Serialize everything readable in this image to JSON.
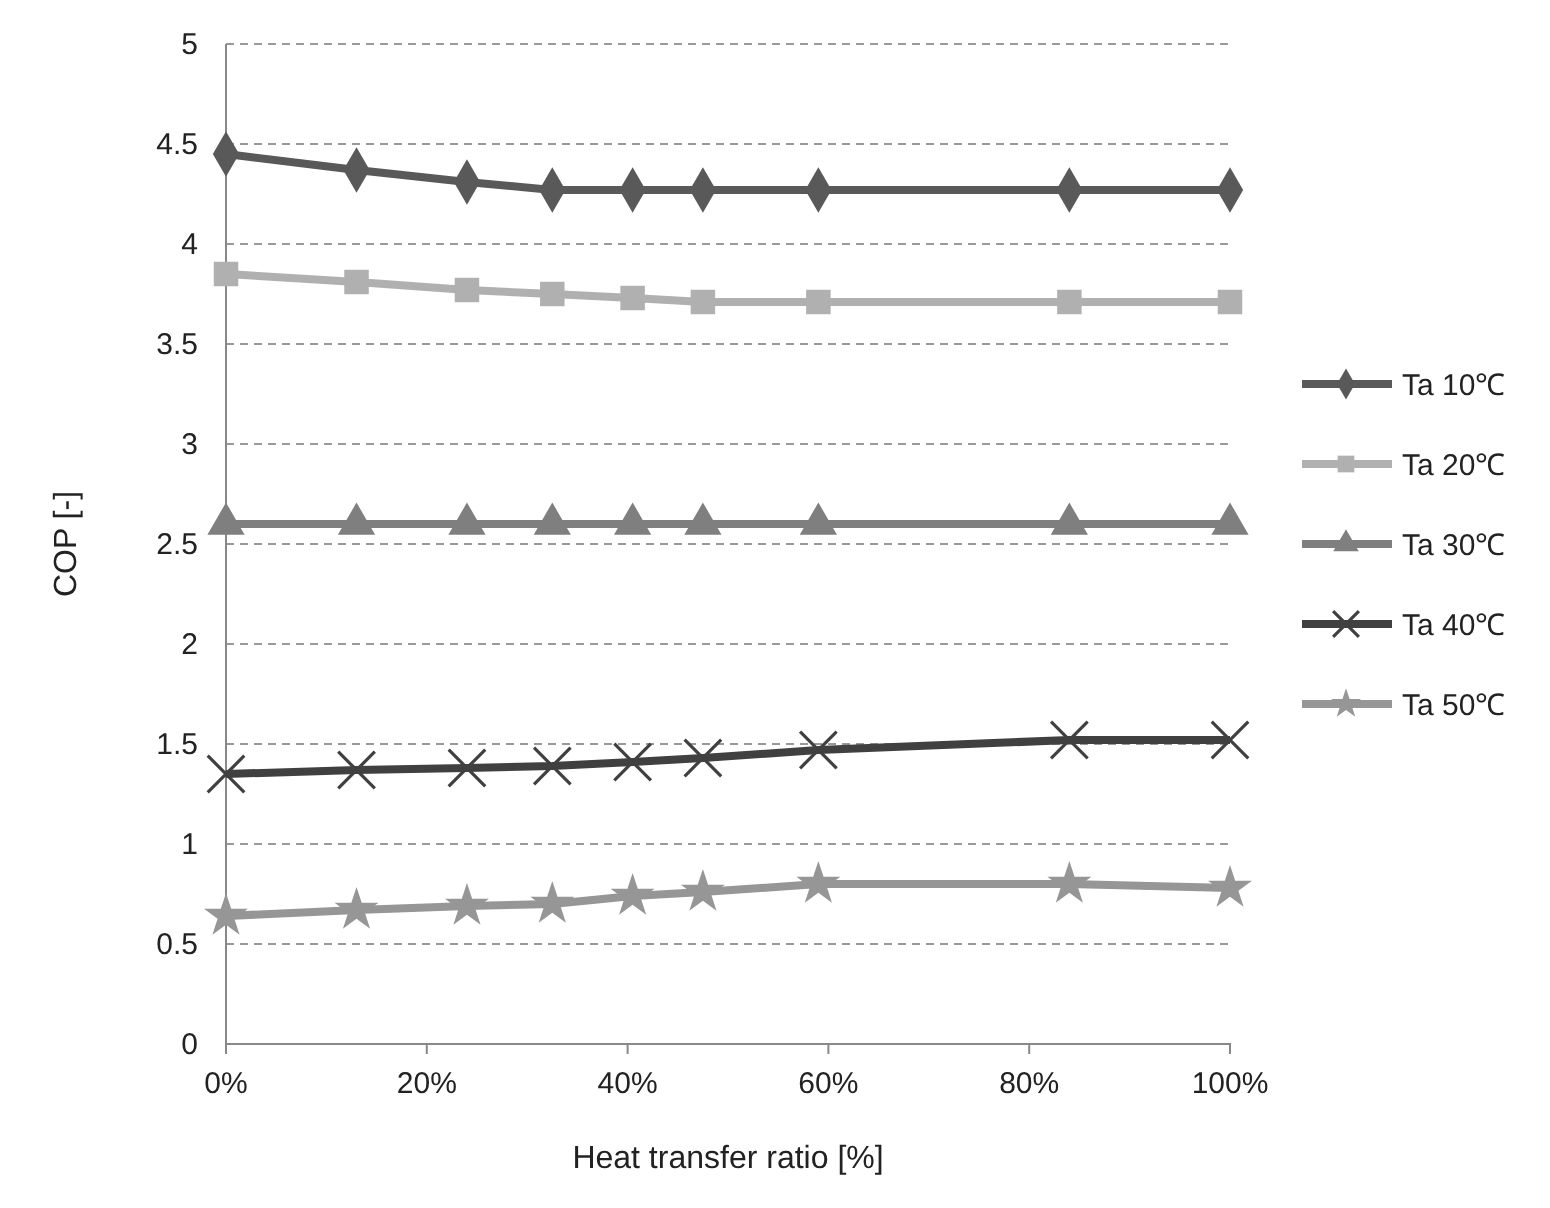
{
  "chart_data": {
    "type": "line",
    "xlabel": "Heat transfer ratio [%]",
    "ylabel": "COP [-]",
    "x": [
      0,
      13,
      24,
      32.5,
      40.5,
      47.5,
      59,
      84,
      100
    ],
    "xlim": [
      0,
      100
    ],
    "xticks": [
      {
        "value": 0,
        "label": "0%"
      },
      {
        "value": 20,
        "label": "20%"
      },
      {
        "value": 40,
        "label": "40%"
      },
      {
        "value": 60,
        "label": "60%"
      },
      {
        "value": 80,
        "label": "80%"
      },
      {
        "value": 100,
        "label": "100%"
      }
    ],
    "ylim": [
      0,
      5
    ],
    "yticks": [
      0,
      0.5,
      1,
      1.5,
      2,
      2.5,
      3,
      3.5,
      4,
      4.5,
      5
    ],
    "grid": "y",
    "legend": "right",
    "line_style": "solid",
    "series": [
      {
        "name": "Ta 10℃",
        "color": "#595959",
        "marker": "diamond",
        "values": [
          4.45,
          4.37,
          4.31,
          4.27,
          4.27,
          4.27,
          4.27,
          4.27,
          4.27
        ]
      },
      {
        "name": "Ta 20℃",
        "color": "#b0b0b0",
        "marker": "square",
        "values": [
          3.85,
          3.81,
          3.77,
          3.75,
          3.73,
          3.71,
          3.71,
          3.71,
          3.71
        ]
      },
      {
        "name": "Ta 30℃",
        "color": "#7f7f7f",
        "marker": "triangle",
        "values": [
          2.6,
          2.6,
          2.6,
          2.6,
          2.6,
          2.6,
          2.6,
          2.6,
          2.6
        ]
      },
      {
        "name": "Ta 40℃",
        "color": "#404040",
        "marker": "cross",
        "values": [
          1.35,
          1.37,
          1.38,
          1.39,
          1.41,
          1.43,
          1.47,
          1.52,
          1.52
        ]
      },
      {
        "name": "Ta 50℃",
        "color": "#969696",
        "marker": "star",
        "values": [
          0.64,
          0.67,
          0.69,
          0.7,
          0.74,
          0.76,
          0.8,
          0.8,
          0.78
        ]
      }
    ]
  }
}
